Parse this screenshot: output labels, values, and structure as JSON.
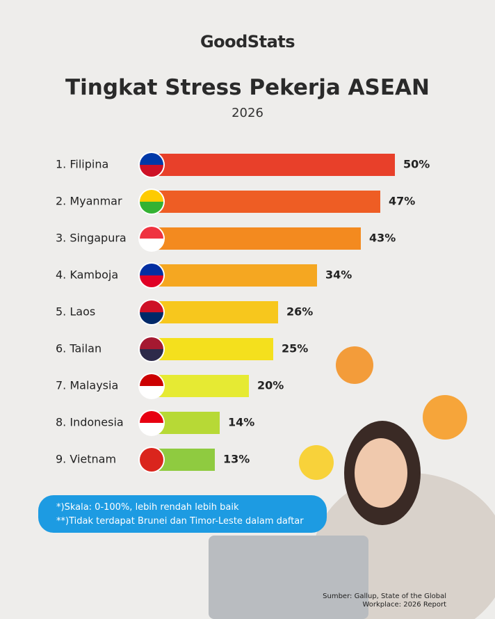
{
  "chart_data": {
    "type": "bar",
    "orientation": "horizontal",
    "brand": "GoodStats",
    "title": "Tingkat Stress Pekerja ASEAN",
    "subtitle": "2026",
    "categories": [
      "1. Filipina",
      "2. Myanmar",
      "3. Singapura",
      "4. Kamboja",
      "5. Laos",
      "6. Tailan",
      "7. Malaysia",
      "8. Indonesia",
      "9. Vietnam"
    ],
    "values": [
      50,
      47,
      43,
      34,
      26,
      25,
      20,
      14,
      13
    ],
    "value_labels": [
      "50%",
      "47%",
      "43%",
      "34%",
      "26%",
      "25%",
      "20%",
      "14%",
      "13%"
    ],
    "colors": [
      "#e8402a",
      "#ee5d24",
      "#f38a1f",
      "#f5a721",
      "#f7c71d",
      "#f4e01d",
      "#e6ea33",
      "#b7d936",
      "#8fcb40"
    ],
    "notes": [
      "*)Skala: 0-100%, lebih rendah lebih baik",
      "**)Tidak terdapat Brunei dan Timor-Leste dalam daftar"
    ],
    "source": "Sumber: Gallup, State of the Global Workplace: 2026 Report"
  }
}
